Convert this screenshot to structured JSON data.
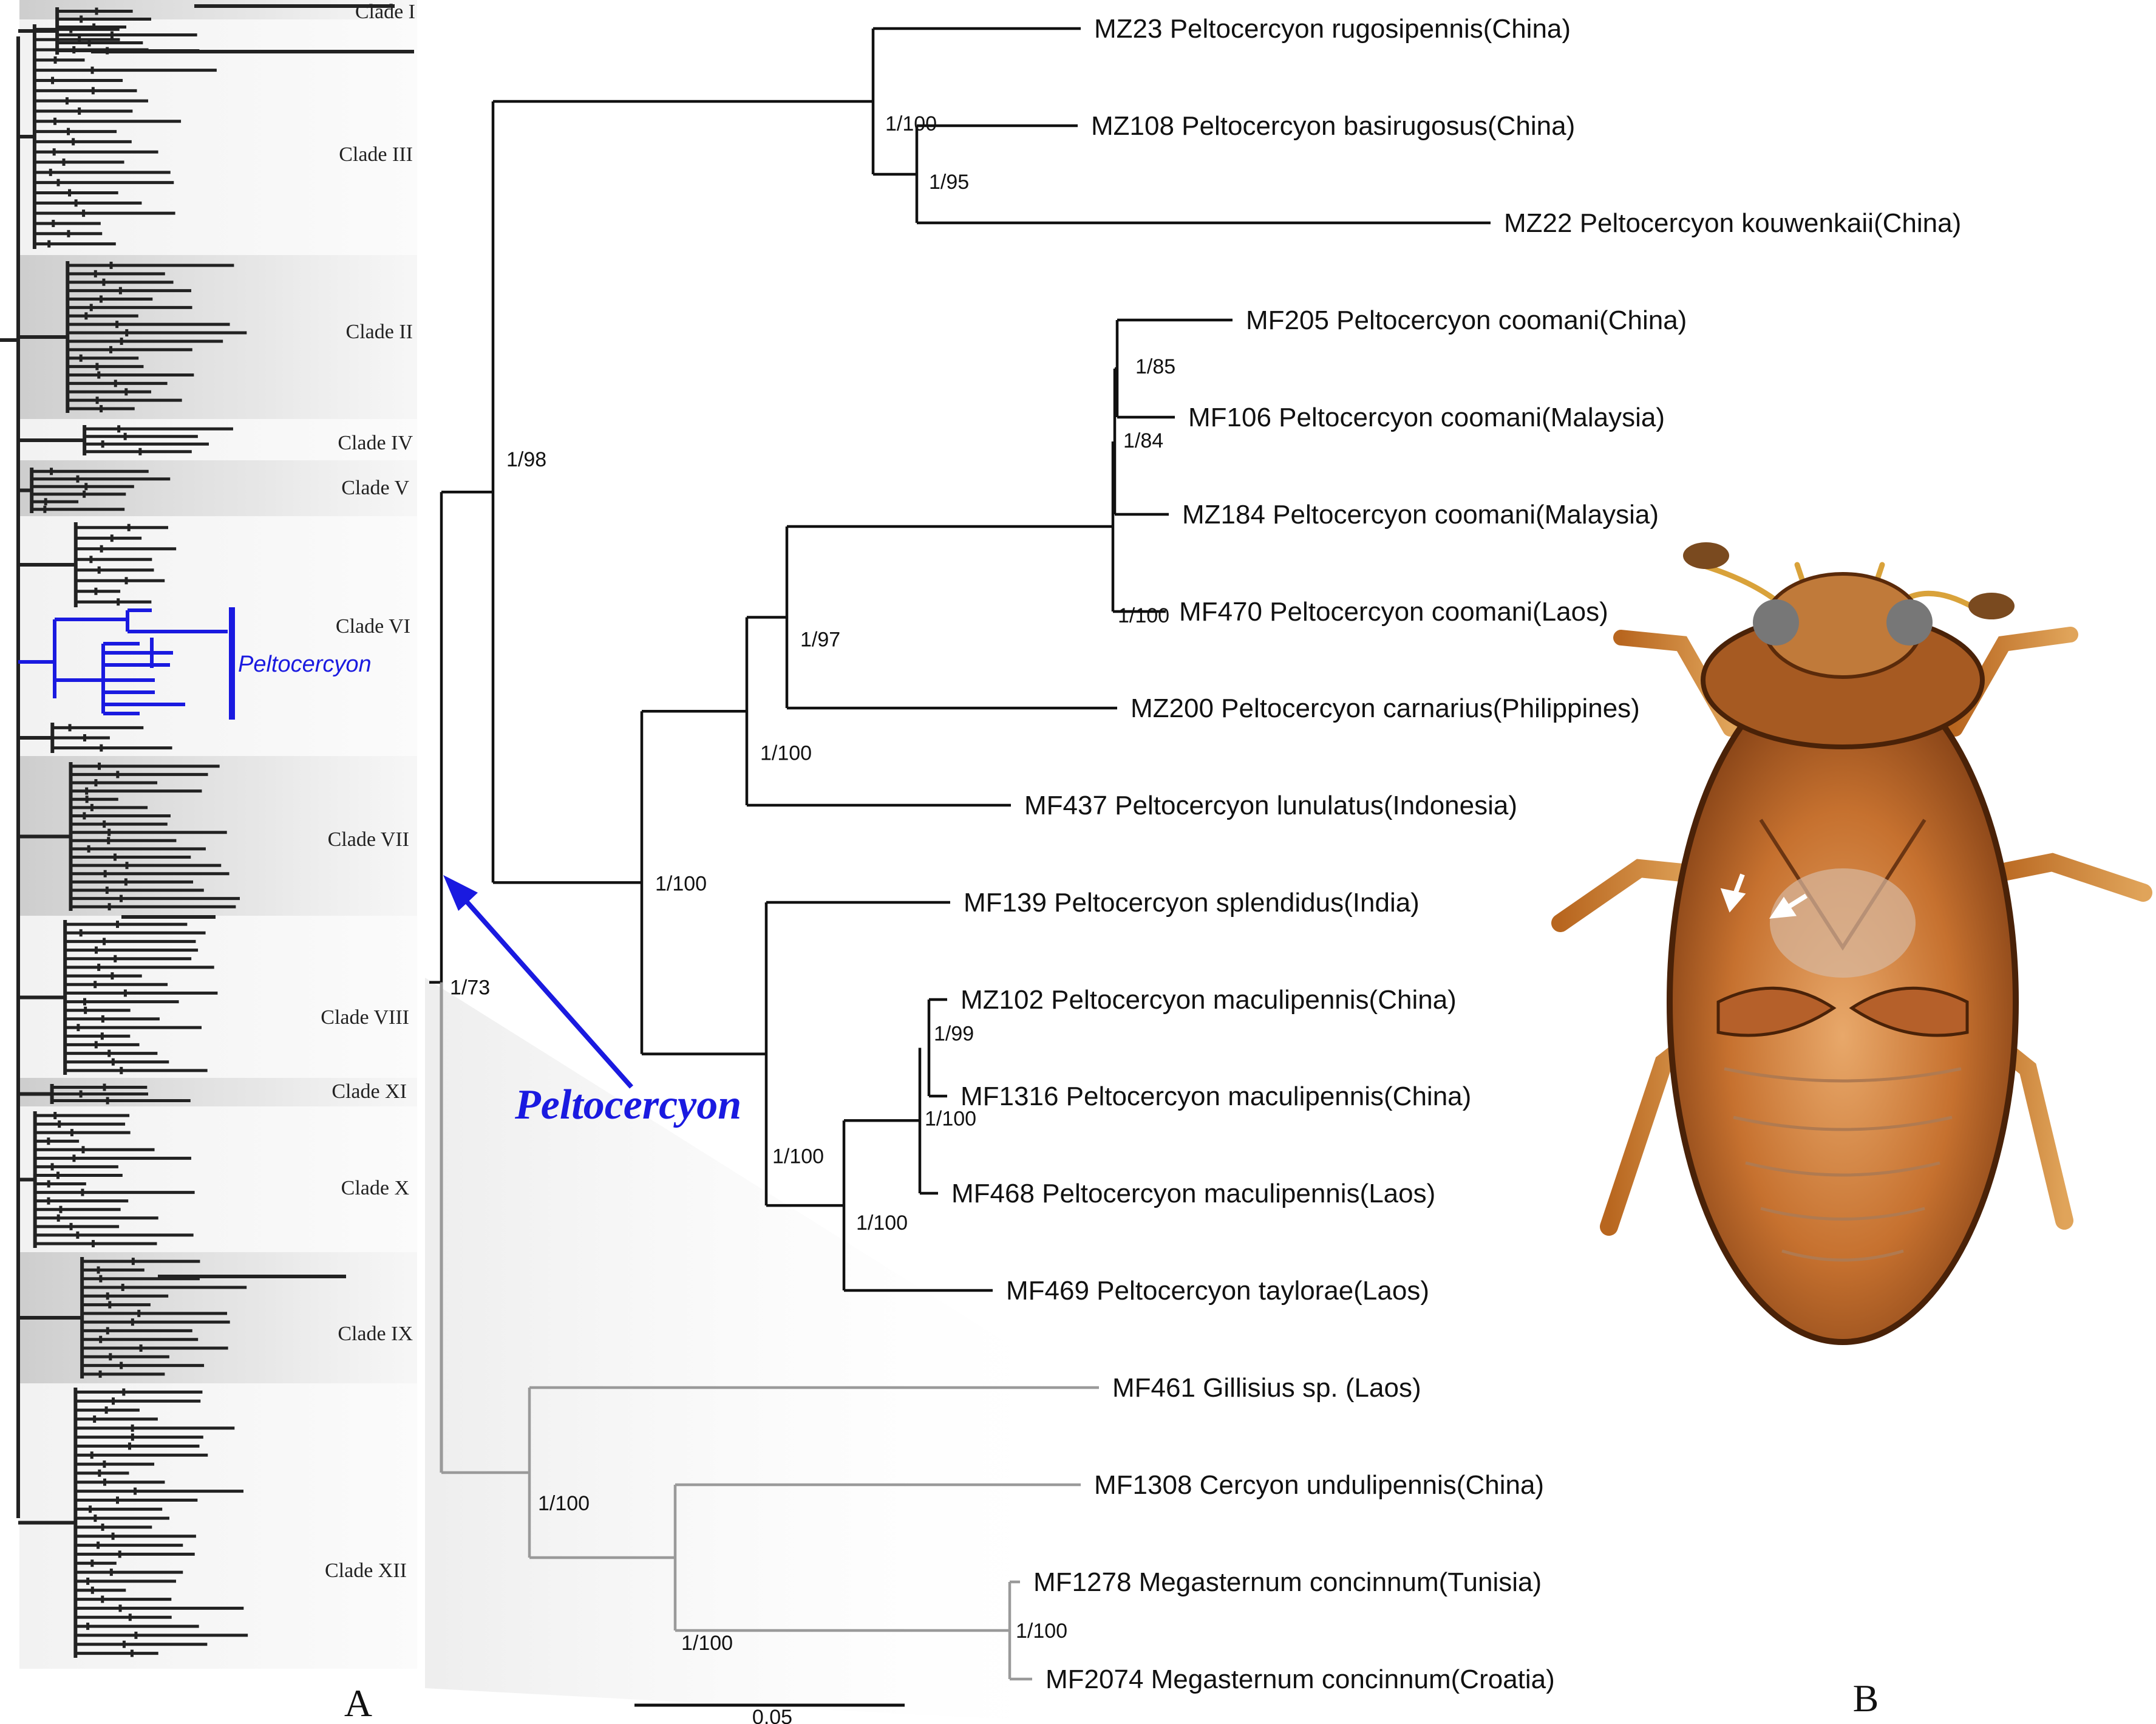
{
  "panel_labels": {
    "a": "A",
    "b": "B"
  },
  "scale_bar": {
    "label": "0.05"
  },
  "highlight": {
    "genus": "Peltocercyon",
    "color": "#1a1ae0",
    "mini_label": "Peltocercyon"
  },
  "overview": {
    "clades": [
      {
        "id": "I",
        "label": "Clade I"
      },
      {
        "id": "III",
        "label": "Clade III"
      },
      {
        "id": "II",
        "label": "Clade II"
      },
      {
        "id": "IV",
        "label": "Clade IV"
      },
      {
        "id": "V",
        "label": "Clade V"
      },
      {
        "id": "VI",
        "label": "Clade VI"
      },
      {
        "id": "VII",
        "label": "Clade VII"
      },
      {
        "id": "VIII",
        "label": "Clade VIII"
      },
      {
        "id": "XI",
        "label": "Clade XI"
      },
      {
        "id": "X",
        "label": "Clade X"
      },
      {
        "id": "IX",
        "label": "Clade IX"
      },
      {
        "id": "XII",
        "label": "Clade XII"
      }
    ]
  },
  "tree": {
    "ingroup_color": "#111111",
    "outgroup_color": "#9a9a9a",
    "taxa": [
      "MZ23 Peltocercyon rugosipennis(China)",
      "MZ108 Peltocercyon basirugosus(China)",
      "MZ22 Peltocercyon kouwenkaii(China)",
      "MF205 Peltocercyon coomani(China)",
      "MF106 Peltocercyon coomani(Malaysia)",
      "MZ184 Peltocercyon coomani(Malaysia)",
      "MF470 Peltocercyon coomani(Laos)",
      "MZ200 Peltocercyon carnarius(Philippines)",
      "MF437 Peltocercyon lunulatus(Indonesia)",
      "MF139 Peltocercyon splendidus(India)",
      "MZ102 Peltocercyon maculipennis(China)",
      "MF1316 Peltocercyon maculipennis(China)",
      "MF468 Peltocercyon maculipennis(Laos)",
      "MF469 Peltocercyon taylorae(Laos)",
      "MF461 Gillisius sp. (Laos)",
      "MF1308 Cercyon undulipennis(China)",
      "MF1278 Megasternum concinnum(Tunisia)",
      "MF2074 Megasternum concinnum(Croatia)"
    ],
    "supports": [
      "1/100",
      "1/95",
      "1/85",
      "1/84",
      "1/100",
      "1/97",
      "1/100",
      "1/98",
      "1/100",
      "1/100",
      "1/99",
      "1/100",
      "1/100",
      "1/73",
      "1/100",
      "1/100",
      "1/100"
    ]
  },
  "photo": {
    "subject": "beetle-ventral-view"
  }
}
